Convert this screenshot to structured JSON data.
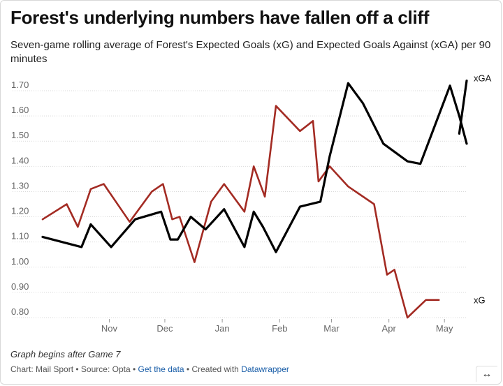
{
  "title": "Forest's underlying numbers have fallen off a cliff",
  "subtitle": "Seven-game rolling average of Forest's Expected Goals (xG) and Expected Goals Against (xGA) per 90 minutes",
  "note": "Graph begins after Game 7",
  "footer": {
    "chart_by": "Chart: Mail Sport",
    "source": "Source: Opta",
    "get_data": "Get the data",
    "created_with": "Created with",
    "tool": "Datawrapper"
  },
  "expand_icon": "↔",
  "colors": {
    "xG": "#a32b23",
    "xGA": "#000000",
    "grid": "#d9d9d9",
    "tick": "#666666"
  },
  "chart_data": {
    "type": "line",
    "title": "Forest's underlying numbers have fallen off a cliff",
    "subtitle": "Seven-game rolling average of Forest's Expected Goals (xG) and Expected Goals Against (xGA) per 90 minutes",
    "ylim": [
      0.8,
      1.7
    ],
    "yticks": [
      "1.70",
      "1.60",
      "1.50",
      "1.40",
      "1.30",
      "1.20",
      "1.10",
      "1.00",
      "0.90",
      "0.80"
    ],
    "x_ticks": [
      "Nov",
      "Dec",
      "Jan",
      "Feb",
      "Mar",
      "Apr",
      "May"
    ],
    "grid": true,
    "legend": "inline labels at line ends (right)",
    "x": [
      "2022-10-10",
      "2022-10-23",
      "2022-10-29",
      "2022-11-05",
      "2022-11-12",
      "2022-11-26",
      "2022-12-08",
      "2022-12-14",
      "2022-12-19",
      "2022-12-23",
      "2022-12-31",
      "2023-01-09",
      "2023-01-16",
      "2023-01-27",
      "2023-02-01",
      "2023-02-07",
      "2023-02-13",
      "2023-02-26",
      "2023-03-05",
      "2023-03-08",
      "2023-03-14",
      "2023-03-24",
      "2023-04-07",
      "2023-04-14",
      "2023-04-18",
      "2023-04-25",
      "2023-05-05",
      "2023-05-12"
    ],
    "series": [
      {
        "name": "xG",
        "color": "#a32b23",
        "values": [
          1.19,
          1.25,
          1.16,
          1.31,
          1.33,
          1.18,
          1.3,
          1.33,
          1.19,
          1.2,
          1.02,
          1.26,
          1.33,
          1.22,
          1.4,
          1.28,
          1.64,
          1.54,
          1.58,
          1.34,
          1.4,
          1.32,
          1.25,
          0.97,
          0.99,
          0.8,
          0.87,
          0.87
        ]
      },
      {
        "name": "xGA",
        "color": "#000000",
        "x": [
          "2022-10-10",
          "2022-10-31",
          "2022-11-05",
          "2022-11-16",
          "2022-11-29",
          "2022-12-13",
          "2022-12-18",
          "2022-12-22",
          "2022-12-29",
          "2023-01-06",
          "2023-01-16",
          "2023-01-27",
          "2023-02-01",
          "2023-02-06",
          "2023-02-13",
          "2023-02-26",
          "2023-03-09",
          "2023-03-14",
          "2023-03-24",
          "2023-04-01",
          "2023-04-12",
          "2023-04-25",
          "2023-05-02",
          "2023-05-18",
          "2023-05-23",
          "2023-05-27"
        ],
        "values": [
          1.12,
          1.08,
          1.17,
          1.08,
          1.19,
          1.22,
          1.11,
          1.11,
          1.2,
          1.15,
          1.23,
          1.08,
          1.22,
          1.16,
          1.06,
          1.24,
          1.26,
          1.44,
          1.73,
          1.65,
          1.49,
          1.42,
          1.41,
          1.72,
          1.6,
          1.49
        ]
      }
    ]
  }
}
